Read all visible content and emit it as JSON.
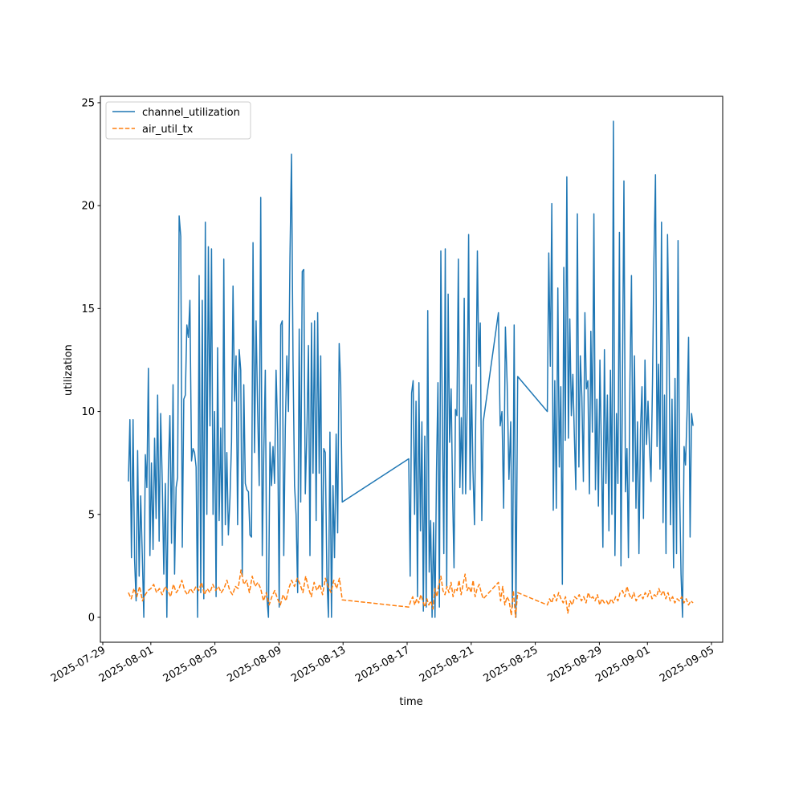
{
  "chart_data": {
    "type": "line",
    "title": "",
    "xlabel": "time",
    "ylabel": "utilization",
    "x_units": "days since 2025-07-29",
    "xlim": [
      -0.15,
      38.7
    ],
    "ylim": [
      -1.21,
      25.31
    ],
    "yticks": [
      0,
      5,
      10,
      15,
      20,
      25
    ],
    "ytick_labels": [
      "0",
      "5",
      "10",
      "15",
      "20",
      "25"
    ],
    "xticks": [
      0,
      3,
      7,
      11,
      15,
      19,
      23,
      27,
      31,
      34,
      38
    ],
    "xtick_labels": [
      "2025-07-29",
      "2025-08-01",
      "2025-08-05",
      "2025-08-09",
      "2025-08-13",
      "2025-08-17",
      "2025-08-21",
      "2025-08-25",
      "2025-08-29",
      "2025-09-01",
      "2025-09-05"
    ],
    "legend": {
      "placement": "top-left",
      "entries": [
        "channel_utilization",
        "air_util_tx"
      ]
    },
    "series": [
      {
        "name": "channel_utilization",
        "color": "#1f77b4",
        "style": "solid",
        "segments": [
          {
            "start": 1.6,
            "end": 14.95,
            "values": [
              6.6,
              9.6,
              2.9,
              9.6,
              2.8,
              0.8,
              8.1,
              2,
              5.9,
              3,
              0,
              7.9,
              6.3,
              12.1,
              3,
              7.5,
              3.3,
              8.7,
              4.8,
              10.8,
              3.7,
              9.9,
              6.5,
              2.1,
              6.5,
              0,
              7.2,
              9.8,
              3.6,
              11.3,
              2.1,
              6.3,
              6.8,
              19.5,
              18.5,
              3.4,
              10.6,
              10.8,
              14.2,
              13.6,
              15.4,
              7.6,
              8.2,
              8,
              7.3,
              0,
              16.6,
              1.2,
              15.4,
              0.9,
              19.2,
              5,
              18,
              9.3,
              17.9,
              5,
              10,
              1,
              13.1,
              4.7,
              9.2,
              3.5,
              17.4,
              4.5,
              8,
              4,
              5.8,
              8.5,
              16.1,
              10.5,
              12.7,
              4.5,
              13,
              12,
              2,
              11.3,
              6.5,
              6.2,
              6.1,
              4,
              3.9,
              18.2,
              8,
              14.4,
              10.2,
              6.4,
              20.4,
              3,
              8,
              12,
              1,
              0,
              8.5,
              6.4,
              8.3,
              6.5,
              12,
              9,
              0.5,
              14.2,
              14.4,
              3,
              9.2,
              12.7,
              10,
              17.5,
              22.5,
              12.5,
              6.4,
              5,
              1.2,
              14,
              5.6,
              16.8,
              16.9,
              6,
              9,
              13.2,
              3,
              14.3,
              7,
              14.4,
              4.7,
              14.8,
              7,
              12.7,
              1.5,
              8.2,
              8,
              2,
              0,
              9,
              0,
              6.4,
              2.9,
              8.9,
              4.1,
              13.3,
              11.3,
              5.6
            ]
          },
          {
            "start": 19.1,
            "end": 23.75,
            "values": [
              7.7,
              2,
              10.9,
              11.5,
              5,
              10.5,
              1,
              11.4,
              4.2,
              9.5,
              0.3,
              8.8,
              0.5,
              14.9,
              2.2,
              4.7,
              0,
              4.6,
              0,
              7.1,
              11.4,
              0.5,
              17.8,
              9.9,
              3.1,
              17.9,
              1.5,
              15.7,
              8.5,
              11.1,
              6.1,
              2.4,
              10.1,
              9.8,
              17.4,
              6.3,
              9.7,
              6,
              15.5,
              6,
              10.5,
              18.6,
              6.2,
              11.3,
              7.1,
              4.5,
              10.5,
              17.8,
              12.2,
              14.3,
              4.7,
              9.5
            ]
          },
          {
            "start": 24.7,
            "end": 25.9,
            "values": [
              14.8,
              9.3,
              10,
              5.3,
              14.1,
              11.3,
              6.7,
              9.5,
              0.5,
              14.2,
              0,
              11.7
            ]
          },
          {
            "start": 27.75,
            "end": 36.85,
            "values": [
              10,
              17.7,
              12.2,
              20.1,
              5.2,
              11.5,
              5.3,
              16,
              7.3,
              11.2,
              1.6,
              17,
              8.6,
              21.4,
              8.7,
              14.5,
              9.8,
              11.8,
              8.9,
              6.2,
              19.6,
              7.3,
              12.7,
              10.7,
              6.6,
              14.8,
              11.1,
              11.5,
              6,
              13.9,
              9,
              19.6,
              6.2,
              10.6,
              5.4,
              12.5,
              8.2,
              3.4,
              13,
              6.5,
              10.8,
              4.2,
              12,
              5,
              24.1,
              3,
              9.9,
              6.5,
              18.7,
              2.5,
              11.2,
              21.2,
              6.1,
              8.2,
              2.9,
              11.5,
              16.6,
              6.6,
              12.7,
              5.3,
              9.5,
              3.1,
              9.1,
              11.2,
              4.8,
              12.5,
              8.4,
              10.5,
              8.3,
              6.6,
              11.5,
              17.4,
              21.5,
              8.3,
              12.3,
              7.2,
              19.2,
              4.6,
              10.8,
              3.1,
              18.6,
              13.2,
              4.5,
              10.6,
              2.4,
              11.6,
              3.1,
              18.3,
              6.3,
              2.1,
              0,
              8.3,
              7.4,
              9.9,
              13.6,
              3.9,
              9.9,
              9.3
            ]
          }
        ]
      },
      {
        "name": "air_util_tx",
        "color": "#ff7f0e",
        "style": "dashed",
        "segments": [
          {
            "start": 1.6,
            "end": 14.95,
            "values": [
              1.2,
              0.9,
              1.4,
              1.0,
              1.5,
              0.8,
              1.1,
              1.3,
              1.4,
              1.6,
              1.2,
              1.4,
              1.1,
              1.5,
              1.3,
              1.0,
              1.6,
              1.2,
              1.4,
              1.8,
              1.3,
              1.1,
              1.4,
              1.2,
              1.5,
              1.3,
              1.7,
              1.1,
              1.4,
              1.2,
              1.6,
              1.3,
              1.5,
              1.2,
              1.4,
              1.8,
              1.3,
              1.1,
              1.5,
              1.4,
              2.3,
              1.6,
              1.8,
              1.2,
              2.0,
              1.5,
              1.7,
              1.4,
              0.8,
              1.2,
              0.6,
              1.0,
              1.3,
              0.9,
              0.6,
              1.1,
              0.8,
              1.4,
              1.8,
              1.5,
              1.9,
              1.6,
              1.2,
              2.0,
              1.4,
              1.0,
              1.7,
              1.3,
              1.6,
              1.1,
              1.9,
              1.5,
              1.2,
              1.8,
              1.4,
              1.9,
              0.85
            ]
          },
          {
            "start": 19.1,
            "end": 23.75,
            "values": [
              0.5,
              0.8,
              1.0,
              0.6,
              0.9,
              0.7,
              1.1,
              0.8,
              0.5,
              0.9,
              0.6,
              0.8,
              0.4,
              1.4,
              1.0,
              1.6,
              2.0,
              1.3,
              1.1,
              1.5,
              1.2,
              1.7,
              1.0,
              1.4,
              1.3,
              1.8,
              1.1,
              1.6,
              2.1,
              1.3,
              1.5,
              1.2,
              1.8,
              1.0,
              1.4,
              1.6,
              1.2,
              0.9
            ]
          },
          {
            "start": 24.7,
            "end": 25.9,
            "values": [
              1.7,
              0.8,
              1.5,
              0.6,
              1.0,
              0.8,
              0.1,
              1.3,
              0.0,
              1.2
            ]
          },
          {
            "start": 27.75,
            "end": 36.85,
            "values": [
              0.6,
              0.9,
              0.7,
              1.1,
              0.8,
              1.2,
              0.9,
              0.7,
              1.0,
              0.2,
              0.8,
              0.6,
              1.0,
              0.9,
              1.1,
              0.8,
              1.0,
              0.7,
              1.2,
              0.9,
              1.0,
              0.8,
              1.1,
              0.6,
              0.9,
              0.7,
              0.8,
              0.6,
              0.9,
              0.7,
              1.0,
              0.8,
              1.2,
              1.3,
              1.0,
              1.5,
              1.1,
              0.9,
              1.2,
              0.8,
              1.0,
              1.1,
              0.9,
              1.2,
              1.0,
              1.3,
              0.9,
              1.1,
              1.0,
              1.4,
              1.1,
              1.3,
              0.9,
              1.2,
              0.8,
              1.0,
              0.7,
              0.9,
              0.8,
              1.0,
              0.7,
              0.9,
              0.6,
              0.8,
              0.7
            ]
          }
        ]
      }
    ]
  }
}
